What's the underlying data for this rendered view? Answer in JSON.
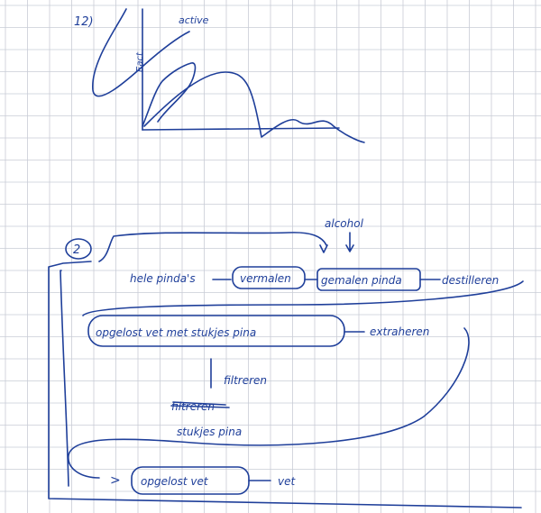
{
  "page": {
    "background": "#ffffff",
    "grid_color": "#c9ccd6",
    "ink_color": "#1f3f9a"
  },
  "sketch": {
    "label": "12)",
    "axis_label": "Eact",
    "curve_label": "active"
  },
  "diagram": {
    "number": "2",
    "start": "hele pinda's",
    "step1": "vermalen",
    "step2": "gemalen pinda",
    "step3": "destilleren",
    "additive": "alcohol",
    "mixture": "opgelost vet met stukjes pina",
    "step4": "extraheren",
    "step5": "filtreren",
    "crossed": "filtreren",
    "residue": "stukjes pina",
    "result": "opgelost vet",
    "final": "vet"
  }
}
